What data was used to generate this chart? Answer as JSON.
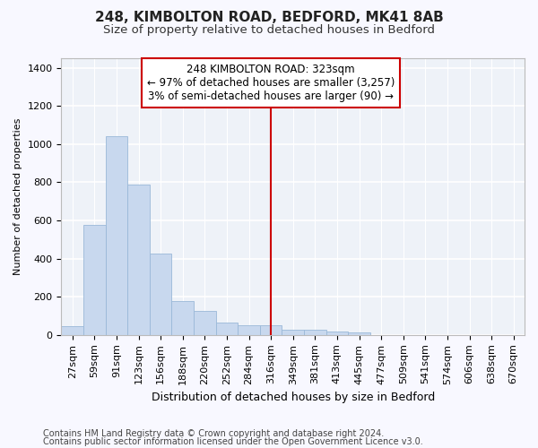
{
  "title1": "248, KIMBOLTON ROAD, BEDFORD, MK41 8AB",
  "title2": "Size of property relative to detached houses in Bedford",
  "xlabel": "Distribution of detached houses by size in Bedford",
  "ylabel": "Number of detached properties",
  "bar_color": "#c8d8ee",
  "bar_edge_color": "#9ab8d8",
  "background_color": "#eef2f8",
  "fig_background_color": "#f8f8ff",
  "grid_color": "#ffffff",
  "categories": [
    "27sqm",
    "59sqm",
    "91sqm",
    "123sqm",
    "156sqm",
    "188sqm",
    "220sqm",
    "252sqm",
    "284sqm",
    "316sqm",
    "349sqm",
    "381sqm",
    "413sqm",
    "445sqm",
    "477sqm",
    "509sqm",
    "541sqm",
    "574sqm",
    "606sqm",
    "638sqm",
    "670sqm"
  ],
  "values": [
    48,
    575,
    1040,
    790,
    425,
    178,
    128,
    65,
    50,
    50,
    28,
    25,
    20,
    12,
    0,
    0,
    0,
    0,
    0,
    0,
    0
  ],
  "vline_x_idx": 9,
  "vline_color": "#cc0000",
  "annot_line1": "248 KIMBOLTON ROAD: 323sqm",
  "annot_line2": "← 97% of detached houses are smaller (3,257)",
  "annot_line3": "3% of semi-detached houses are larger (90) →",
  "annotation_box_color": "#cc0000",
  "ylim": [
    0,
    1450
  ],
  "yticks": [
    0,
    200,
    400,
    600,
    800,
    1000,
    1200,
    1400
  ],
  "footnote1": "Contains HM Land Registry data © Crown copyright and database right 2024.",
  "footnote2": "Contains public sector information licensed under the Open Government Licence v3.0.",
  "title1_fontsize": 11,
  "title2_fontsize": 9.5,
  "xlabel_fontsize": 9,
  "ylabel_fontsize": 8,
  "tick_fontsize": 8,
  "annot_fontsize": 8.5,
  "footnote_fontsize": 7
}
